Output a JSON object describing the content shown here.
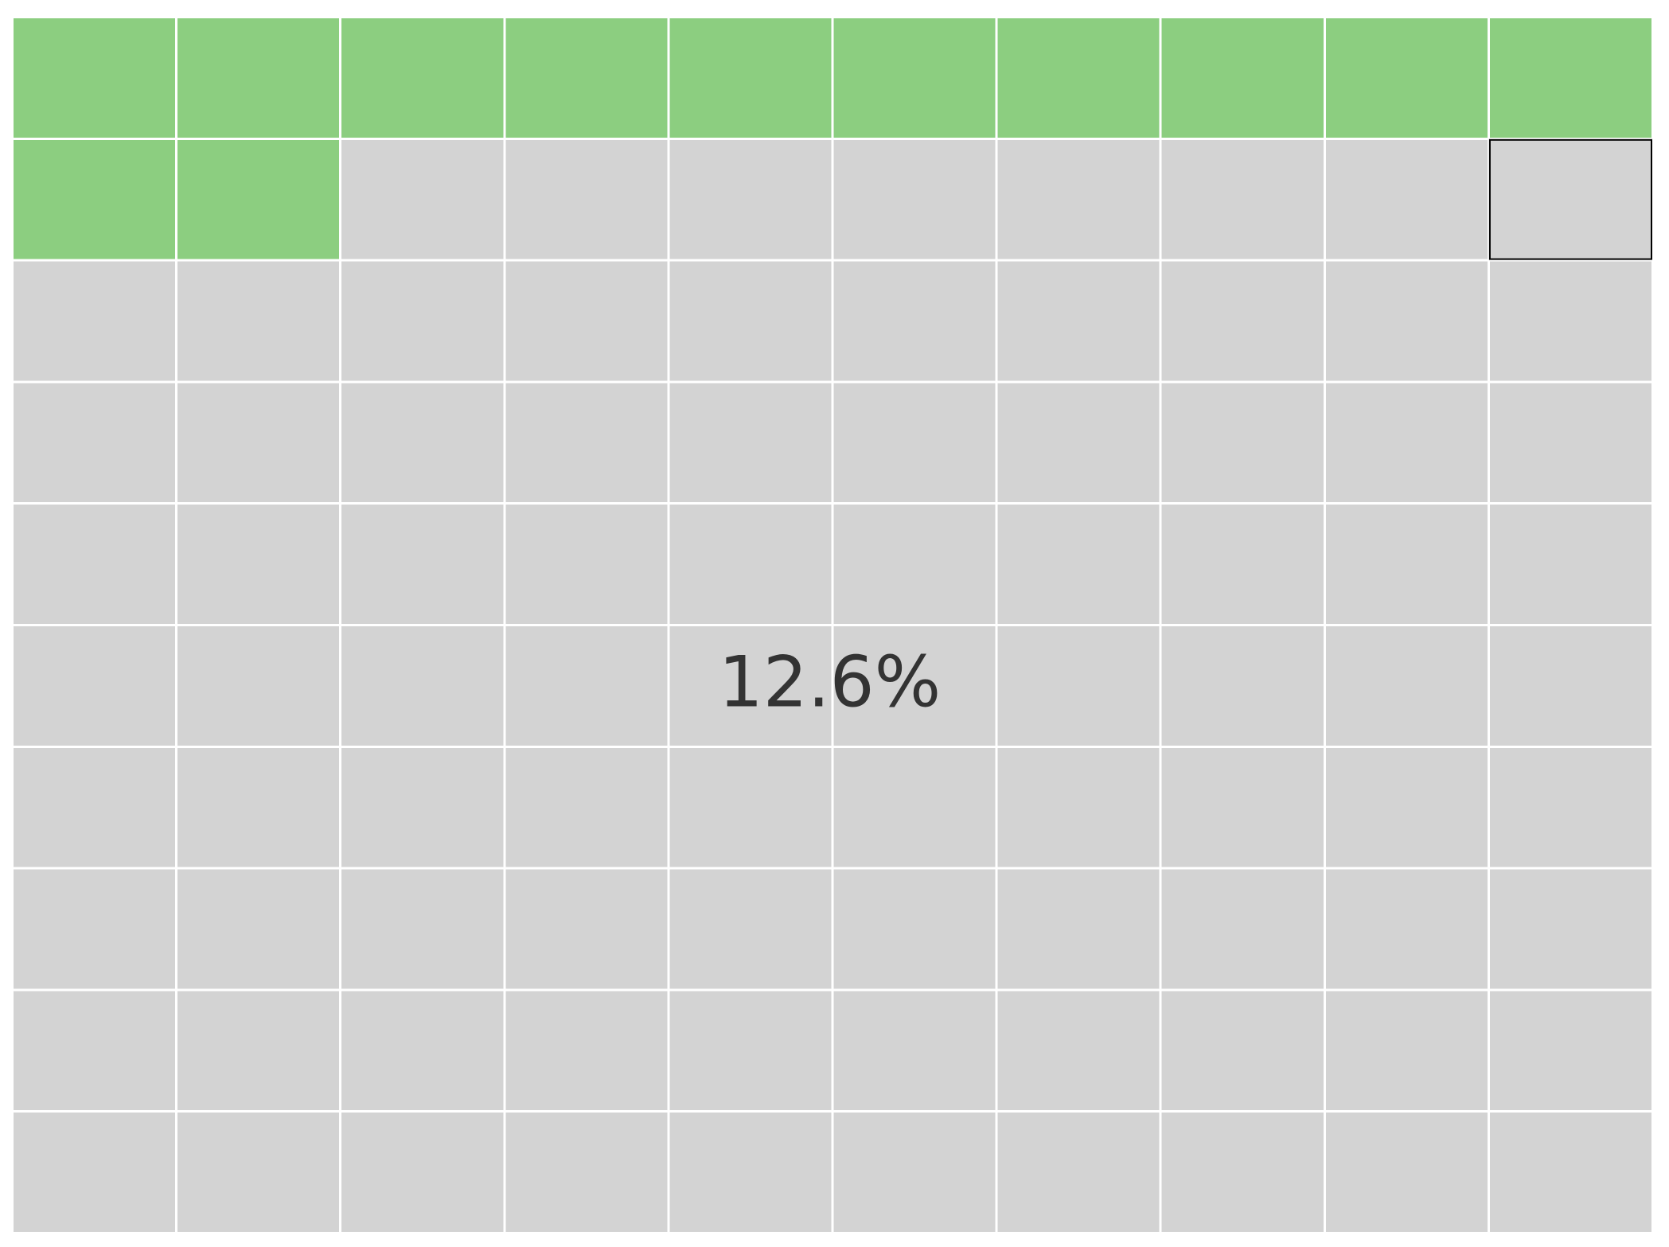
{
  "chart_data": {
    "type": "waffle",
    "rows": 10,
    "cols": 10,
    "filled_cells": 12,
    "value_percent": 12.6,
    "label": "12.6%",
    "colors": {
      "filled": "#8cce80",
      "empty": "#d3d3d3",
      "gap": "#ffffff",
      "highlight_border": "#000000",
      "label": "#333333"
    },
    "highlighted_cell": {
      "row": 1,
      "col": 9
    }
  }
}
